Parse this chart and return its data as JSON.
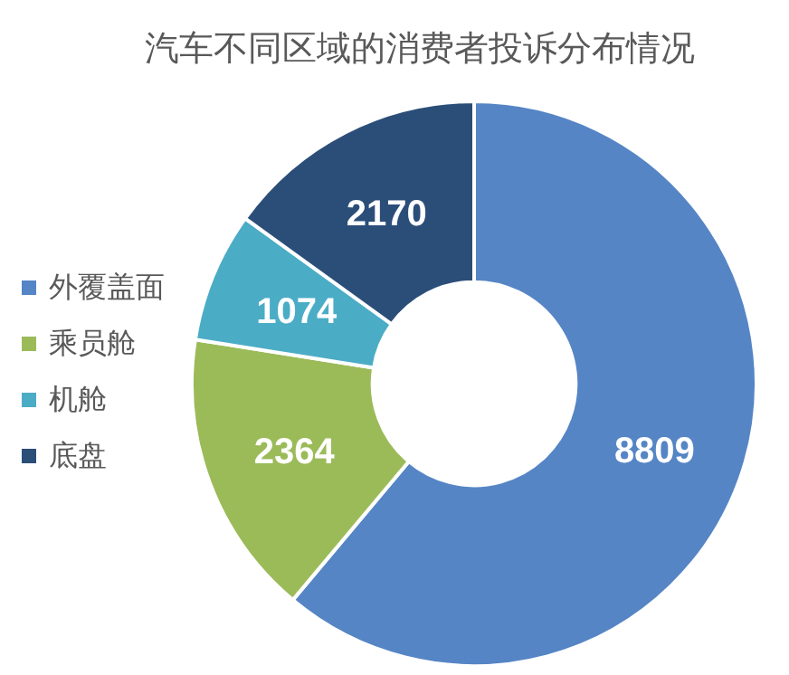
{
  "chart_data": {
    "type": "donut",
    "title": "汽车不同区域的消费者投诉分布情况",
    "categories": [
      "外覆盖面",
      "乘员舱",
      "机舱",
      "底盘"
    ],
    "values": [
      8809,
      2364,
      1074,
      2170
    ],
    "colors": [
      "#5585c5",
      "#9bbb59",
      "#4bacc6",
      "#2b4e79"
    ],
    "data_labels": true,
    "legend": "left"
  }
}
